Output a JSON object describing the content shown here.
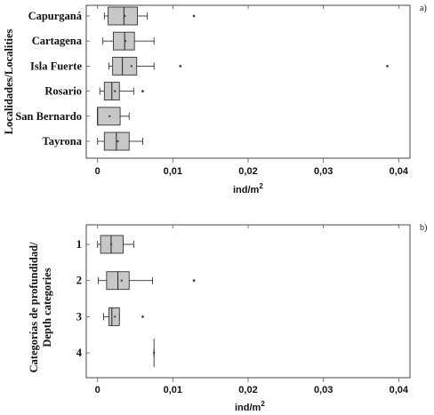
{
  "chart_data": [
    {
      "type": "boxplot",
      "panel_label": "a)",
      "ylabel": "Localidades/Localities",
      "xlabel": "ind/m",
      "xlabel_sup": "2",
      "xlim": [
        -0.0015,
        0.0415
      ],
      "xticks": [
        0,
        0.01,
        0.02,
        0.03,
        0.04
      ],
      "xtick_labels": [
        "0",
        "0,01",
        "0,02",
        "0,03",
        "0,04"
      ],
      "categories": [
        "Capurganá",
        "Cartagena",
        "Isla Fuerte",
        "Rosario",
        "San Bernardo",
        "Tayrona"
      ],
      "boxes": [
        {
          "label": "Capurganá",
          "whisker_low": 0.0009,
          "q1": 0.0014,
          "median": 0.0035,
          "mean": 0.0036,
          "q3": 0.0053,
          "whisker_high": 0.0066,
          "outliers": [
            0.0128
          ]
        },
        {
          "label": "Cartagena",
          "whisker_low": 0.0007,
          "q1": 0.0021,
          "median": 0.0036,
          "mean": 0.0037,
          "q3": 0.0049,
          "whisker_high": 0.0075,
          "outliers": []
        },
        {
          "label": "Isla Fuerte",
          "whisker_low": 0.0015,
          "q1": 0.002,
          "median": 0.0033,
          "mean": 0.0045,
          "q3": 0.0052,
          "whisker_high": 0.0075,
          "outliers": [
            0.011,
            0.0385
          ]
        },
        {
          "label": "Rosario",
          "whisker_low": 0.0003,
          "q1": 0.0009,
          "median": 0.0019,
          "mean": 0.0023,
          "q3": 0.0029,
          "whisker_high": 0.0048,
          "outliers": [
            0.006
          ]
        },
        {
          "label": "San Bernardo",
          "whisker_low": 0.0,
          "q1": 0.0,
          "median": 0.0,
          "mean": 0.0016,
          "q3": 0.003,
          "whisker_high": 0.0042,
          "outliers": []
        },
        {
          "label": "Tayrona",
          "whisker_low": 0.0,
          "q1": 0.0009,
          "median": 0.0025,
          "mean": 0.0027,
          "q3": 0.0042,
          "whisker_high": 0.006,
          "outliers": []
        }
      ]
    },
    {
      "type": "boxplot",
      "panel_label": "b)",
      "ylabel_line1": "Categorías de profundidad/",
      "ylabel_line2": "Depth categories",
      "xlabel": "ind/m",
      "xlabel_sup": "2",
      "xlim": [
        -0.0015,
        0.0415
      ],
      "xticks": [
        0,
        0.01,
        0.02,
        0.03,
        0.04
      ],
      "xtick_labels": [
        "0",
        "0,01",
        "0,02",
        "0,03",
        "0,04"
      ],
      "categories": [
        "1",
        "2",
        "3",
        "4"
      ],
      "boxes": [
        {
          "label": "1",
          "whisker_low": 0.0,
          "q1": 0.0004,
          "median": 0.0018,
          "mean": 0.0018,
          "q3": 0.0034,
          "whisker_high": 0.0048,
          "outliers": []
        },
        {
          "label": "2",
          "whisker_low": 0.0001,
          "q1": 0.0012,
          "median": 0.0027,
          "mean": 0.0032,
          "q3": 0.0042,
          "whisker_high": 0.0073,
          "outliers": [
            0.0128
          ]
        },
        {
          "label": "3",
          "whisker_low": 0.0008,
          "q1": 0.0015,
          "median": 0.0019,
          "mean": 0.0023,
          "q3": 0.0029,
          "whisker_high": 0.0029,
          "outliers": [
            0.006
          ]
        },
        {
          "label": "4",
          "whisker_low": 0.0075,
          "q1": 0.0075,
          "median": 0.0075,
          "mean": 0.0075,
          "q3": 0.0075,
          "whisker_high": 0.0075,
          "outliers": []
        }
      ]
    }
  ]
}
